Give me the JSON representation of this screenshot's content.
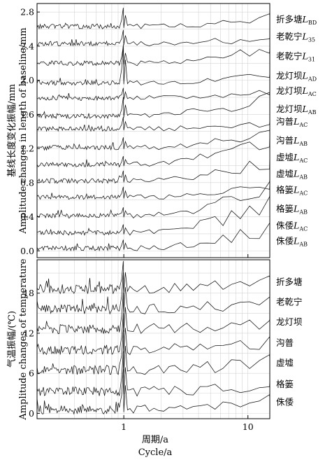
{
  "figure": {
    "xlabel_cn": "周期/a",
    "xlabel_en": "Cycle/a"
  },
  "chart_data": [
    {
      "type": "line",
      "panel": "top",
      "ylabel_cn": "基线长度变化振幅/mm",
      "ylabel_en": "Amplitude changes in length of baseline/mm",
      "xlim": [
        0.2,
        15
      ],
      "xscale": "log",
      "ylim": [
        -0.08,
        2.9
      ],
      "grid": true,
      "x_ticks": [
        {
          "value": 1,
          "label": "1"
        },
        {
          "value": 10,
          "label": "10"
        }
      ],
      "y_ticks": [
        {
          "value": 0.0,
          "label": "0.0"
        },
        {
          "value": 0.4,
          "label": "0.4"
        },
        {
          "value": 0.8,
          "label": "0.8"
        },
        {
          "value": 1.2,
          "label": "1.2"
        },
        {
          "value": 1.6,
          "label": "1.6"
        },
        {
          "value": 2.0,
          "label": "2.0"
        },
        {
          "value": 2.4,
          "label": "2.4"
        },
        {
          "value": 2.8,
          "label": "2.8"
        }
      ],
      "series": [
        {
          "name": "折多塘",
          "sub": "BD",
          "offset": 2.63,
          "peak": 0.22,
          "end": 0.12
        },
        {
          "name": "老乾宁",
          "sub": "35",
          "offset": 2.43,
          "peak": 0.16,
          "end": 0.08
        },
        {
          "name": "老乾宁",
          "sub": "31",
          "offset": 2.2,
          "peak": 0.2,
          "end": 0.2
        },
        {
          "name": "龙灯坝",
          "sub": "AD",
          "offset": 1.97,
          "peak": 0.45,
          "end": 0.12
        },
        {
          "name": "龙灯坝",
          "sub": "AC",
          "offset": 1.79,
          "peak": 0.12,
          "end": 0.08
        },
        {
          "name": "龙灯坝",
          "sub": "AB",
          "offset": 1.58,
          "peak": 0.22,
          "end": 0.28
        },
        {
          "name": "沟普",
          "sub": "AC",
          "offset": 1.43,
          "peak": 0.14,
          "end": 0.1
        },
        {
          "name": "沟普",
          "sub": "AB",
          "offset": 1.21,
          "peak": 0.12,
          "end": 0.22
        },
        {
          "name": "虚墟",
          "sub": "AC",
          "offset": 1.01,
          "peak": 0.1,
          "end": 0.36
        },
        {
          "name": "虚墟",
          "sub": "AB",
          "offset": 0.82,
          "peak": 0.12,
          "end": 0.3
        },
        {
          "name": "格篓",
          "sub": "AC",
          "offset": 0.63,
          "peak": 0.12,
          "end": 0.16
        },
        {
          "name": "格篓",
          "sub": "AB",
          "offset": 0.41,
          "peak": 0.1,
          "end": 0.43
        },
        {
          "name": "侏倭",
          "sub": "AC",
          "offset": 0.21,
          "peak": 0.1,
          "end": 0.45
        },
        {
          "name": "侏倭",
          "sub": "AB",
          "offset": 0.03,
          "peak": 0.1,
          "end": 0.3
        }
      ]
    },
    {
      "type": "line",
      "panel": "bottom",
      "ylabel_cn": "气温振幅/(℃)",
      "ylabel_en": "Amplitude changes of temperature",
      "xlim": [
        0.2,
        15
      ],
      "xscale": "log",
      "ylim": [
        -0.8,
        23
      ],
      "grid": true,
      "x_ticks": [
        {
          "value": 1,
          "label": "1"
        },
        {
          "value": 10,
          "label": "10"
        }
      ],
      "y_ticks": [
        {
          "value": 0,
          "label": "0"
        },
        {
          "value": 6,
          "label": "6"
        },
        {
          "value": 12,
          "label": "12"
        },
        {
          "value": 18,
          "label": "18"
        }
      ],
      "series": [
        {
          "name": "折多塘",
          "offset": 18.6,
          "peak": 4.2,
          "end": 1.6
        },
        {
          "name": "老乾宁",
          "offset": 15.6,
          "peak": 5.5,
          "end": 1.6
        },
        {
          "name": "龙灯坝",
          "offset": 12.6,
          "peak": 5.5,
          "end": 1.6
        },
        {
          "name": "沟普",
          "offset": 9.5,
          "peak": 5.5,
          "end": 1.6
        },
        {
          "name": "虚墟",
          "offset": 6.5,
          "peak": 6.0,
          "end": 1.6
        },
        {
          "name": "格篓",
          "offset": 3.3,
          "peak": 6.0,
          "end": 1.6
        },
        {
          "name": "侏倭",
          "offset": 0.6,
          "peak": 6.0,
          "end": 1.6
        }
      ]
    }
  ]
}
